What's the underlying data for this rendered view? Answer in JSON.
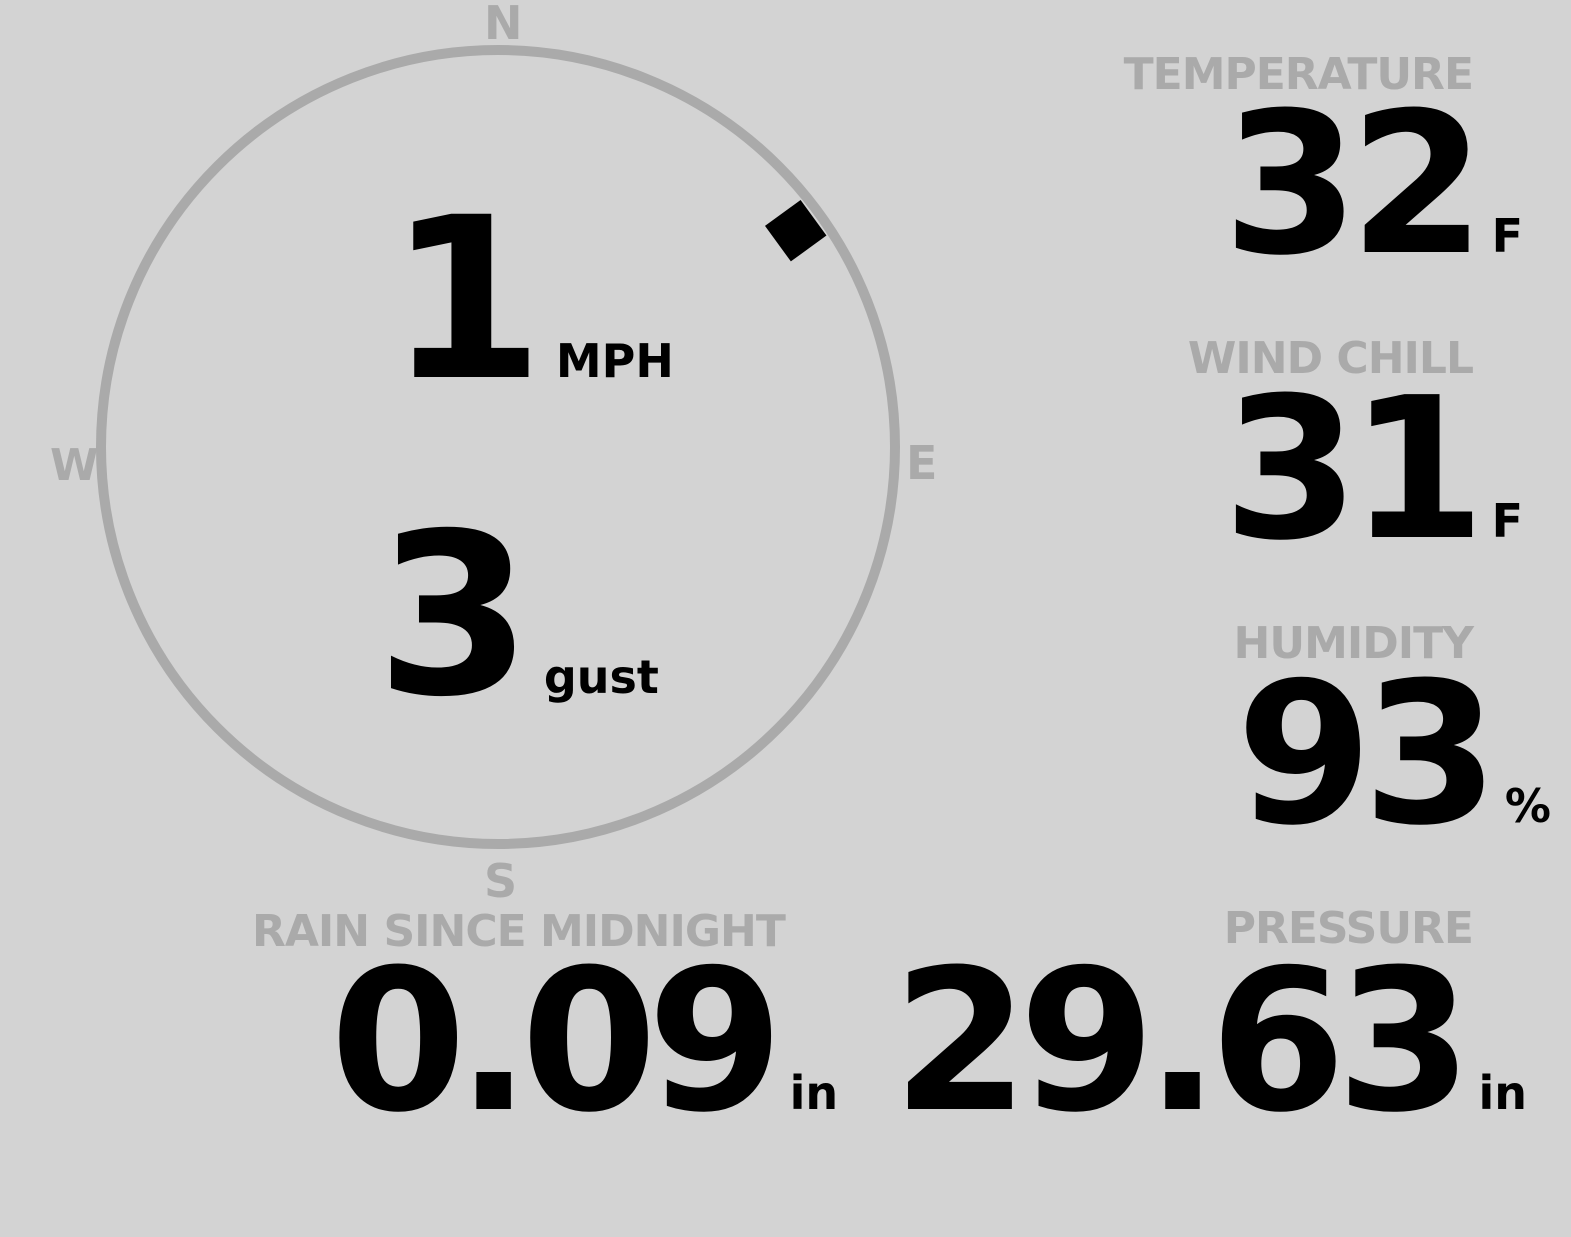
{
  "wind": {
    "speed": "1",
    "speed_unit": "MPH",
    "gust": "3",
    "gust_label": "gust",
    "direction_degrees": 54,
    "compass": {
      "n": "N",
      "e": "E",
      "s": "S",
      "w": "W"
    }
  },
  "temperature": {
    "label": "TEMPERATURE",
    "value": "32",
    "unit": "F"
  },
  "wind_chill": {
    "label": "WIND CHILL",
    "value": "31",
    "unit": "F"
  },
  "humidity": {
    "label": "HUMIDITY",
    "value": "93",
    "unit": "%"
  },
  "rain": {
    "label": "RAIN SINCE MIDNIGHT",
    "value": "0.09",
    "unit": "in"
  },
  "pressure": {
    "label": "PRESSURE",
    "value": "29.63",
    "unit": "in"
  },
  "colors": {
    "background": "#d3d3d3",
    "label": "#aaaaaa",
    "value": "#000000"
  }
}
